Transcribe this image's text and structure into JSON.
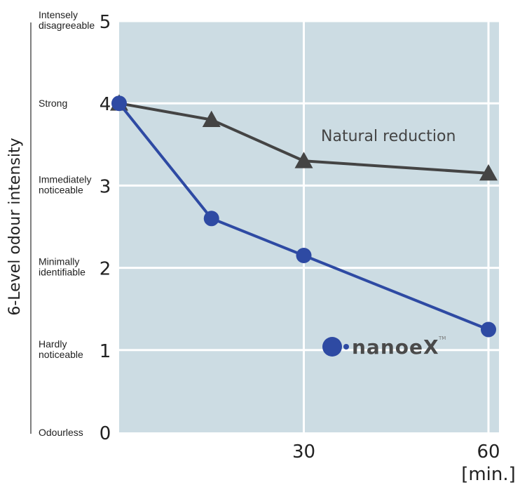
{
  "chart_data": {
    "type": "line",
    "title": "",
    "xlabel": "[min.]",
    "ylabel": "6-Level odour intensity",
    "xlim": [
      0,
      60
    ],
    "ylim": [
      0,
      5
    ],
    "x_ticks": [
      30,
      60
    ],
    "y_ticks": [
      0,
      1,
      2,
      3,
      4,
      5
    ],
    "y_level_labels": [
      {
        "value": 0,
        "text": "Odourless"
      },
      {
        "value": 1,
        "text": "Hardly noticeable"
      },
      {
        "value": 2,
        "text": "Minimally identifiable"
      },
      {
        "value": 3,
        "text": "Immediately noticeable"
      },
      {
        "value": 4,
        "text": "Strong"
      },
      {
        "value": 5,
        "text": "Intensely disagreeable"
      }
    ],
    "series": [
      {
        "name": "Natural reduction",
        "marker": "triangle",
        "color": "#444444",
        "x": [
          0,
          15,
          30,
          60
        ],
        "y": [
          4.0,
          3.8,
          3.3,
          3.15
        ]
      },
      {
        "name": "nanoe X",
        "marker": "circle",
        "color": "#2e4aa3",
        "x": [
          0,
          15,
          30,
          60
        ],
        "y": [
          4.0,
          2.6,
          2.15,
          1.25
        ]
      }
    ],
    "grid": true,
    "background_color": "#ccdce3",
    "grid_color": "#ffffff"
  },
  "logo": {
    "text": "nanoeX",
    "tm": "TM",
    "dot_color": "#2e4aa3"
  }
}
